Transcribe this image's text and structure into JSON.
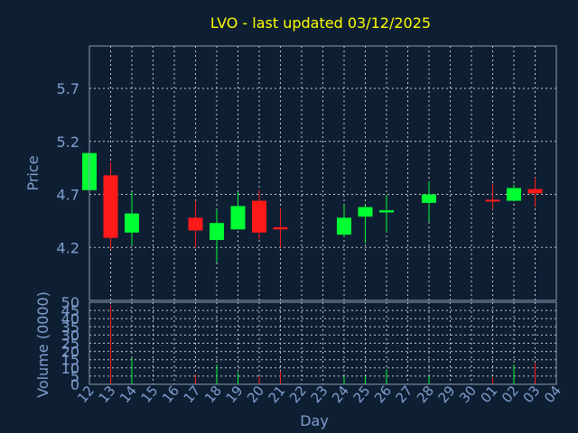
{
  "chart_data": {
    "type": "candlestick",
    "title": "LVO - last updated 03/12/2025",
    "xlabel": "Day",
    "price_panel": {
      "ylabel": "Price",
      "ylim": [
        3.7,
        6.1
      ],
      "yticks": [
        "5.7",
        "5.2",
        "4.7",
        "4.2"
      ],
      "tick_values": [
        5.7,
        5.2,
        4.7,
        4.2
      ]
    },
    "volume_panel": {
      "ylabel": "Volume (0000)",
      "ylim": [
        0,
        50
      ],
      "yticks": [
        "50",
        "45",
        "40",
        "35",
        "30",
        "25",
        "20",
        "15",
        "10",
        "5",
        "0"
      ],
      "tick_values": [
        50,
        45,
        40,
        35,
        30,
        25,
        20,
        15,
        10,
        5,
        0
      ]
    },
    "x_labels": [
      "12",
      "13",
      "14",
      "15",
      "16",
      "17",
      "18",
      "19",
      "20",
      "21",
      "22",
      "23",
      "24",
      "25",
      "26",
      "27",
      "28",
      "29",
      "30",
      "01",
      "02",
      "03",
      "04"
    ],
    "colors": {
      "up": "#00ff33",
      "down": "#ff1a1a"
    },
    "candles": [
      {
        "i": 0,
        "open": 4.74,
        "high": 5.09,
        "low": 4.74,
        "close": 5.09,
        "volume": 0
      },
      {
        "i": 1,
        "open": 4.88,
        "high": 5.0,
        "low": 4.18,
        "close": 4.29,
        "volume": 48
      },
      {
        "i": 2,
        "open": 4.34,
        "high": 4.72,
        "low": 4.22,
        "close": 4.52,
        "volume": 16
      },
      {
        "i": 5,
        "open": 4.48,
        "high": 4.64,
        "low": 4.2,
        "close": 4.36,
        "volume": 6
      },
      {
        "i": 6,
        "open": 4.27,
        "high": 4.56,
        "low": 4.06,
        "close": 4.43,
        "volume": 12
      },
      {
        "i": 7,
        "open": 4.37,
        "high": 4.72,
        "low": 4.37,
        "close": 4.59,
        "volume": 7
      },
      {
        "i": 8,
        "open": 4.64,
        "high": 4.74,
        "low": 4.28,
        "close": 4.34,
        "volume": 5
      },
      {
        "i": 9,
        "open": 4.39,
        "high": 4.57,
        "low": 4.2,
        "close": 4.37,
        "volume": 8
      },
      {
        "i": 12,
        "open": 4.32,
        "high": 4.6,
        "low": 4.3,
        "close": 4.48,
        "volume": 5
      },
      {
        "i": 13,
        "open": 4.49,
        "high": 4.6,
        "low": 4.24,
        "close": 4.58,
        "volume": 5
      },
      {
        "i": 14,
        "open": 4.53,
        "high": 4.69,
        "low": 4.34,
        "close": 4.55,
        "volume": 9
      },
      {
        "i": 16,
        "open": 4.62,
        "high": 4.82,
        "low": 4.44,
        "close": 4.7,
        "volume": 5
      },
      {
        "i": 19,
        "open": 4.65,
        "high": 4.8,
        "low": 4.56,
        "close": 4.64,
        "volume": 4
      },
      {
        "i": 20,
        "open": 4.64,
        "high": 4.79,
        "low": 4.64,
        "close": 4.76,
        "volume": 12
      },
      {
        "i": 21,
        "open": 4.75,
        "high": 4.86,
        "low": 4.58,
        "close": 4.71,
        "volume": 13
      }
    ]
  }
}
